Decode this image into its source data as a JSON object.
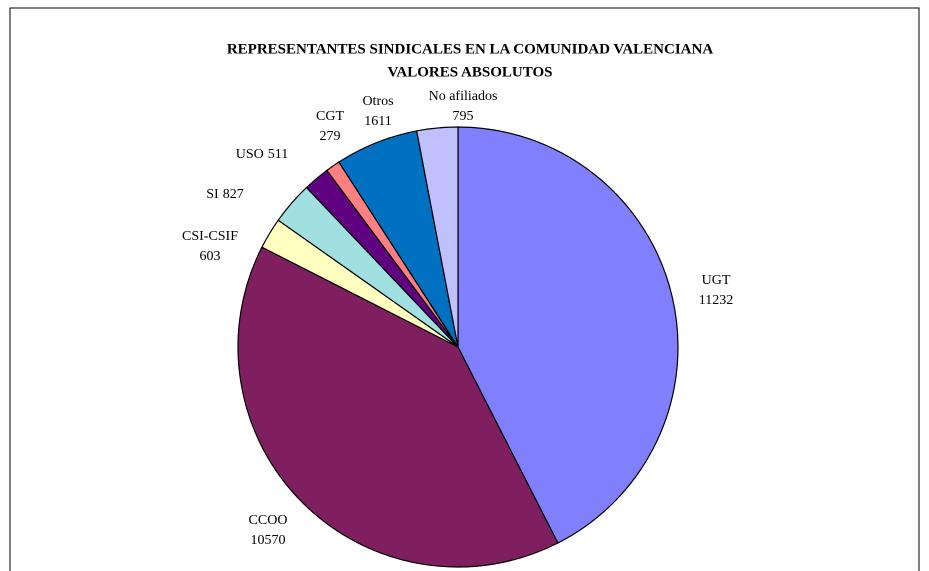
{
  "chart_data": {
    "type": "pie",
    "title": "REPRESENTANTES SINDICALES EN LA COMUNIDAD VALENCIANA",
    "subtitle": "VALORES ABSOLUTOS",
    "categories": [
      "UGT",
      "CCOO",
      "CSI-CSIF",
      "SI",
      "USO",
      "CGT",
      "Otros",
      "No afiliados"
    ],
    "values": [
      11232,
      10570,
      603,
      827,
      511,
      279,
      1611,
      795
    ],
    "colors": [
      "#8080ff",
      "#7f1f5f",
      "#ffffc0",
      "#a0e0e0",
      "#600080",
      "#ff8080",
      "#0070c0",
      "#c0c0ff"
    ]
  }
}
